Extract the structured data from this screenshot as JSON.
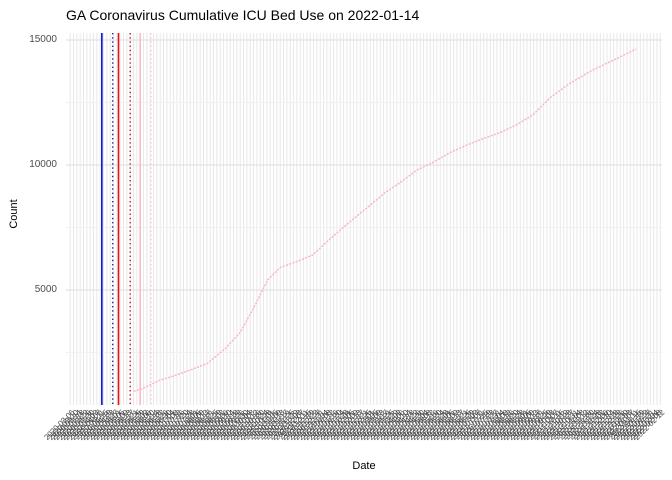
{
  "chart": {
    "title": "GA Coronavirus Cumulative ICU Bed Use on 2022-01-14",
    "x_label": "Date",
    "y_label": "Count"
  },
  "chart_data": {
    "type": "line",
    "title": "GA Coronavirus Cumulative ICU Bed Use on 2022-01-14",
    "xlabel": "Date",
    "ylabel": "Count",
    "x_domain": [
      "2020-03-01",
      "2022-02-14"
    ],
    "y_domain": [
      400,
      15280
    ],
    "y_ticks": [
      5000,
      10000,
      15000
    ],
    "y_minor_ticks": [
      2500,
      7500,
      12500
    ],
    "x_ticks": {
      "start": "2020-03-06",
      "step_days": 4,
      "count": 178
    },
    "grid": {
      "vertical_color": "#e8e8e8",
      "h_major_color": "#dedede",
      "h_minor_color": "#f1f1f1"
    },
    "series": [
      {
        "name": "cumulative-icu-bed-use",
        "color": "#f7b6c3",
        "points": [
          {
            "date": "2020-05-21",
            "count": 950
          },
          {
            "date": "2020-05-31",
            "count": 1040
          },
          {
            "date": "2020-06-22",
            "count": 1400
          },
          {
            "date": "2020-07-07",
            "count": 1550
          },
          {
            "date": "2020-07-28",
            "count": 1800
          },
          {
            "date": "2020-08-17",
            "count": 2050
          },
          {
            "date": "2020-09-08",
            "count": 2650
          },
          {
            "date": "2020-09-26",
            "count": 3300
          },
          {
            "date": "2020-10-14",
            "count": 4400
          },
          {
            "date": "2020-10-29",
            "count": 5400
          },
          {
            "date": "2020-11-13",
            "count": 5900
          },
          {
            "date": "2020-12-04",
            "count": 6150
          },
          {
            "date": "2020-12-22",
            "count": 6400
          },
          {
            "date": "2021-01-07",
            "count": 6900
          },
          {
            "date": "2021-01-24",
            "count": 7400
          },
          {
            "date": "2021-02-11",
            "count": 7900
          },
          {
            "date": "2021-03-01",
            "count": 8400
          },
          {
            "date": "2021-03-19",
            "count": 8900
          },
          {
            "date": "2021-04-06",
            "count": 9300
          },
          {
            "date": "2021-04-26",
            "count": 9800
          },
          {
            "date": "2021-05-15",
            "count": 10100
          },
          {
            "date": "2021-06-05",
            "count": 10500
          },
          {
            "date": "2021-06-25",
            "count": 10800
          },
          {
            "date": "2021-07-14",
            "count": 11050
          },
          {
            "date": "2021-08-04",
            "count": 11300
          },
          {
            "date": "2021-08-23",
            "count": 11600
          },
          {
            "date": "2021-09-12",
            "count": 12000
          },
          {
            "date": "2021-10-03",
            "count": 12700
          },
          {
            "date": "2021-10-27",
            "count": 13280
          },
          {
            "date": "2021-11-23",
            "count": 13800
          },
          {
            "date": "2021-12-18",
            "count": 14200
          },
          {
            "date": "2022-01-14",
            "count": 14640
          }
        ]
      }
    ],
    "reference_lines": [
      {
        "date": "2020-04-13",
        "color": "#0f0fd6",
        "style": "solid"
      },
      {
        "date": "2020-04-26",
        "color": "#2323a6",
        "style": "dotted"
      },
      {
        "date": "2020-05-03",
        "color": "#e41414",
        "style": "solid"
      },
      {
        "date": "2020-05-17",
        "color": "#bb1b38",
        "style": "dotted"
      },
      {
        "date": "2020-05-29",
        "color": "#fab9c8",
        "style": "solid"
      },
      {
        "date": "2020-06-11",
        "color": "#fcc8d3",
        "style": "dotted"
      }
    ]
  }
}
